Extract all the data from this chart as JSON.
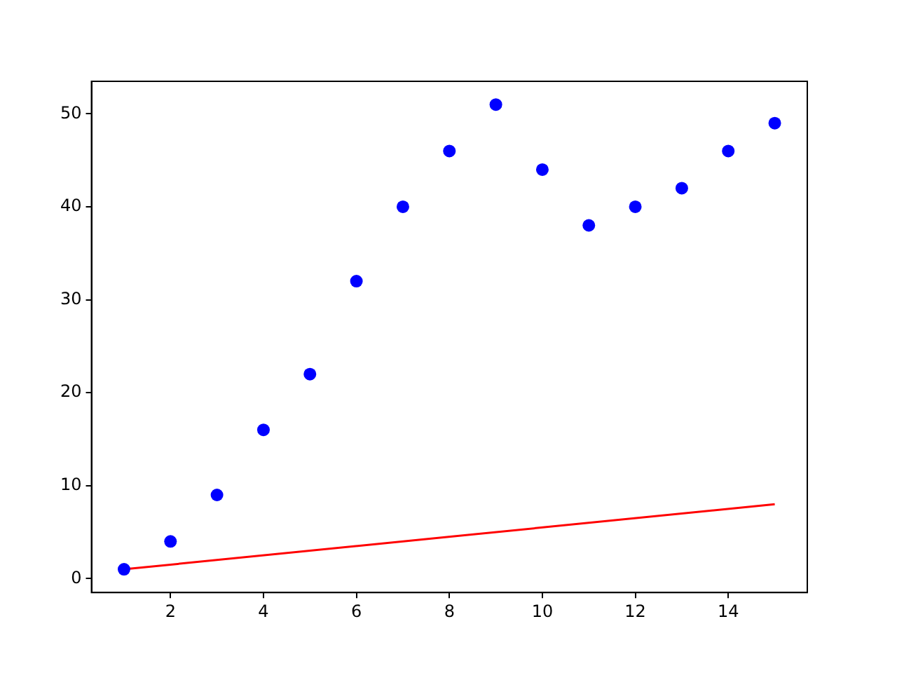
{
  "chart_data": {
    "type": "scatter",
    "x": [
      1,
      2,
      3,
      4,
      5,
      6,
      7,
      8,
      9,
      10,
      11,
      12,
      13,
      14,
      15
    ],
    "series": [
      {
        "color": "#0000ff",
        "marker": "circle",
        "values": [
          1,
          4,
          9,
          16,
          22,
          32,
          40,
          46,
          51,
          44,
          38,
          40,
          42,
          46,
          49
        ]
      },
      {
        "type": "line",
        "color": "#ff0000",
        "line_style": "solid",
        "x": [
          1,
          15
        ],
        "values": [
          1,
          8
        ]
      }
    ],
    "xlim": [
      0.3,
      15.7
    ],
    "xticks": [
      2,
      4,
      6,
      8,
      10,
      12,
      14
    ],
    "ylim": [
      -1.5,
      53.5
    ],
    "yticks": [
      0,
      10,
      20,
      30,
      40,
      50
    ],
    "grid": false,
    "legend": false
  }
}
